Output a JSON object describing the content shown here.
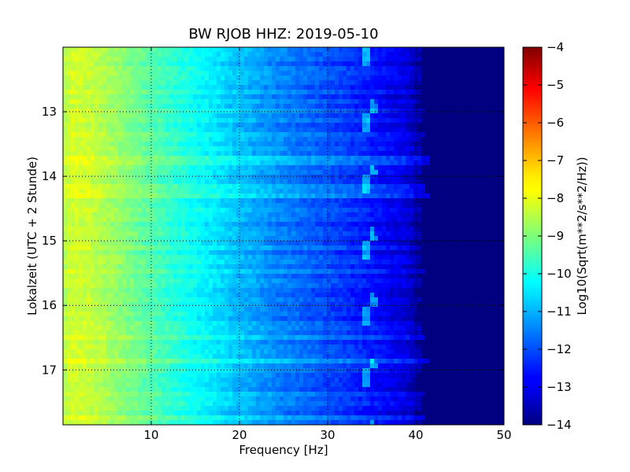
{
  "chart_data": {
    "type": "heatmap",
    "title": "BW RJOB HHZ: 2019-05-10",
    "xlabel": "Frequency [Hz]",
    "ylabel": "Lokalzeit (UTC + 2 Stunde)",
    "xlim": [
      0,
      50
    ],
    "ylim": [
      12,
      17.85
    ],
    "x_ticks": [
      10,
      20,
      30,
      40,
      50
    ],
    "y_ticks": [
      13,
      14,
      15,
      16,
      17
    ],
    "y_axis_inverted": true,
    "grid": true,
    "colormap": "jet",
    "colorbar": {
      "label": "Log10(Sqrt(m**2/s**2/Hz))",
      "range": [
        -14,
        -4
      ],
      "ticks": [
        -4,
        -5,
        -6,
        -7,
        -8,
        -9,
        -10,
        -11,
        -12,
        -13,
        -14
      ]
    },
    "profile_frequency_hz": [
      0,
      1,
      3,
      5,
      8,
      10,
      13,
      16,
      20,
      24,
      28,
      32,
      36,
      39,
      40,
      42,
      45,
      50
    ],
    "profile_log_amplitude": [
      -8.5,
      -8.2,
      -8.3,
      -8.6,
      -9.1,
      -9.4,
      -9.9,
      -10.3,
      -10.9,
      -11.4,
      -11.8,
      -12.2,
      -12.7,
      -13.1,
      -13.5,
      -14,
      -14,
      -14
    ],
    "features": [
      {
        "kind": "tonal-line-hz",
        "value": 34.5
      },
      {
        "kind": "spectral-cutoff-hz",
        "value": 40.5
      }
    ]
  }
}
